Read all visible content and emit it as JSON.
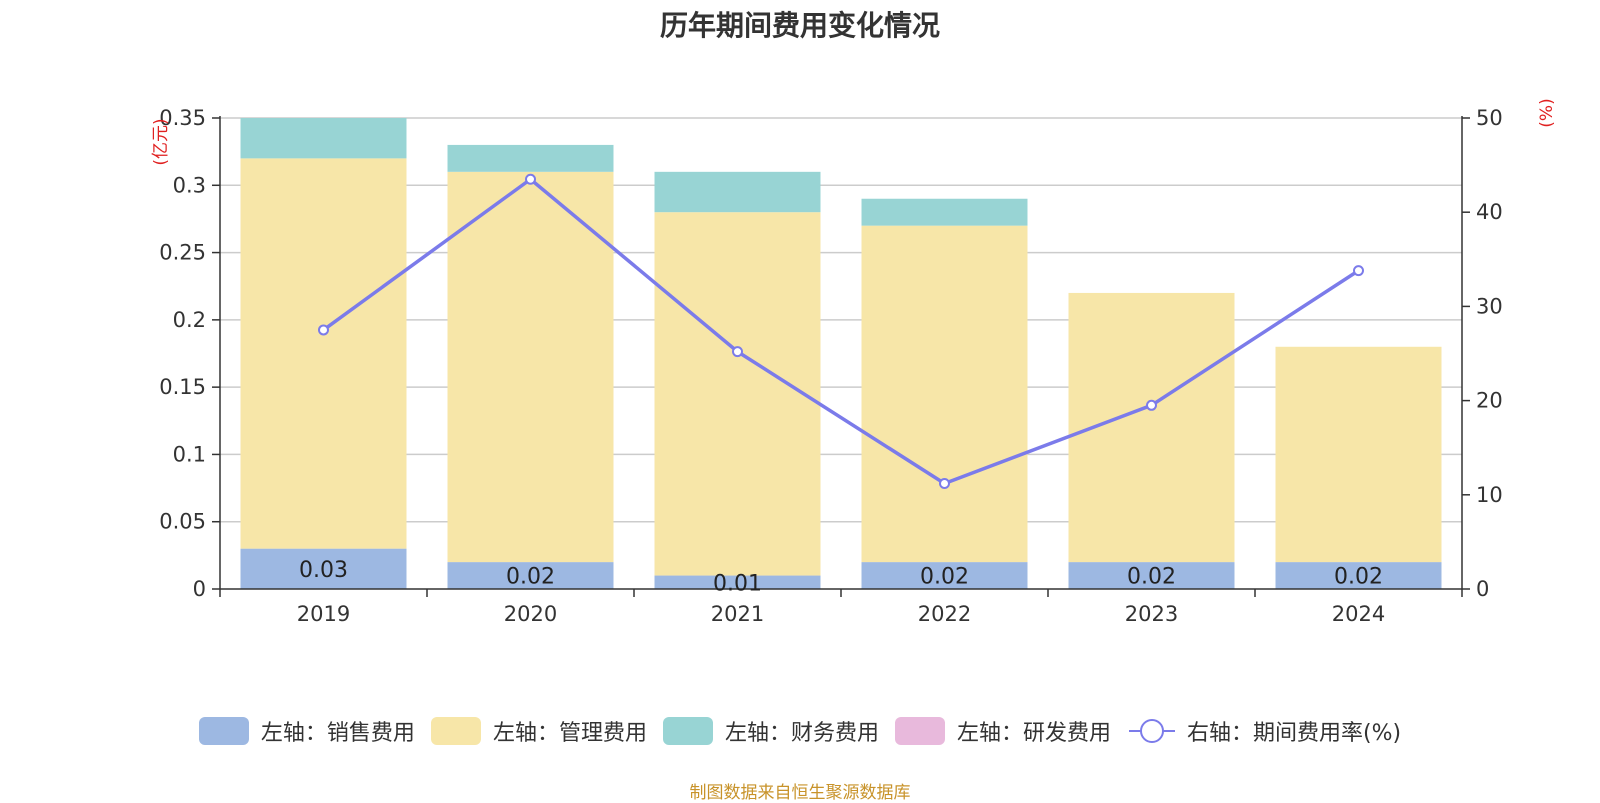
{
  "chart_data": {
    "type": "bar",
    "title": "历年期间费用变化情况",
    "categories": [
      "2019",
      "2020",
      "2021",
      "2022",
      "2023",
      "2024"
    ],
    "stacked": true,
    "left_axis": {
      "unit_label": "(亿元)",
      "range": [
        0,
        0.35
      ],
      "ticks": [
        "0",
        "0.05",
        "0.1",
        "0.15",
        "0.2",
        "0.25",
        "0.3",
        "0.35"
      ],
      "tick_values": [
        0,
        0.05,
        0.1,
        0.15,
        0.2,
        0.25,
        0.3,
        0.35
      ]
    },
    "right_axis": {
      "unit_label": "(%)",
      "range": [
        0,
        50
      ],
      "ticks": [
        "0",
        "10",
        "20",
        "30",
        "40",
        "50"
      ],
      "tick_values": [
        0,
        10,
        20,
        30,
        40,
        50
      ]
    },
    "grid": true,
    "legend_position": "bottom",
    "series": [
      {
        "name": "左轴：销售费用",
        "type": "bar",
        "axis": "left",
        "color": "#9db8e2",
        "values": [
          0.03,
          0.02,
          0.01,
          0.02,
          0.02,
          0.02
        ],
        "labels": [
          "0.03",
          "0.02",
          "0.01",
          "0.02",
          "0.02",
          "0.02"
        ]
      },
      {
        "name": "左轴：管理费用",
        "type": "bar",
        "axis": "left",
        "color": "#f7e6a8",
        "values": [
          0.29,
          0.29,
          0.27,
          0.25,
          0.2,
          0.16
        ]
      },
      {
        "name": "左轴：财务费用",
        "type": "bar",
        "axis": "left",
        "color": "#98d4d4",
        "values": [
          0.03,
          0.02,
          0.03,
          0.02,
          0,
          0
        ]
      },
      {
        "name": "左轴：研发费用",
        "type": "bar",
        "axis": "left",
        "color": "#e8b9dc",
        "values": [
          0,
          0,
          0,
          0,
          0,
          0
        ]
      },
      {
        "name": "右轴：期间费用率(%)",
        "type": "line",
        "axis": "right",
        "color": "#7b7bea",
        "values": [
          27.5,
          43.5,
          25.2,
          11.2,
          19.5,
          33.8
        ]
      }
    ]
  },
  "source_note": "制图数据来自恒生聚源数据库"
}
